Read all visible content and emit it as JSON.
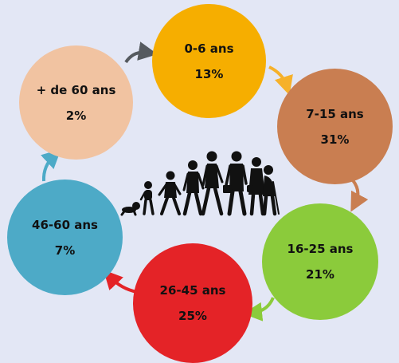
{
  "segments": [
    {
      "label": "0-6 ans",
      "percent": "13%",
      "color": "#f6ae00"
    },
    {
      "label": "7-15 ans",
      "percent": "31%",
      "color": "#c97e51"
    },
    {
      "label": "16-25 ans",
      "percent": "21%",
      "color": "#8bcb3b"
    },
    {
      "label": "26-45 ans",
      "percent": "25%",
      "color": "#e42327"
    },
    {
      "label": "46-60 ans",
      "percent": "7%",
      "color": "#4daac7"
    },
    {
      "label": "+ de 60 ans",
      "percent": "2%",
      "color": "#f1c3a1"
    }
  ],
  "arrow_colors": [
    "#555a5f",
    "#f6b12a",
    "#c97e51",
    "#8bcb3b",
    "#e42327",
    "#4daac7"
  ],
  "illustration": {
    "icon": "human-life-stages-silhouette-icon",
    "color": "#111111"
  }
}
